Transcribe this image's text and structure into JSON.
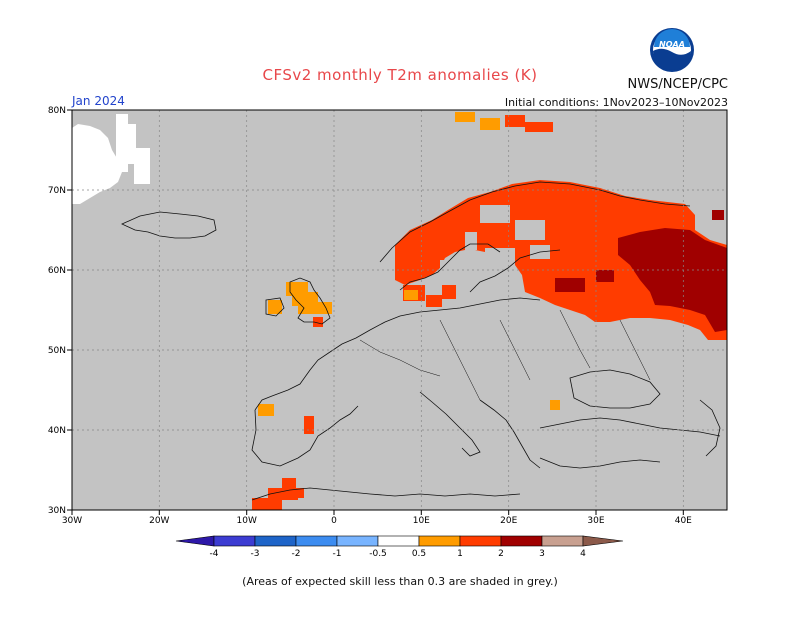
{
  "title": "CFSv2 monthly T2m anomalies (K)",
  "credit": "NWS/NCEP/CPC",
  "logo_text": "NOAA",
  "period": "Jan 2024",
  "initial_conditions": "Initial conditions: 1Nov2023–10Nov2023",
  "footnote": "(Areas of expected skill less than 0.3 are shaded in grey.)",
  "map": {
    "lon_range": [
      -30,
      45
    ],
    "lat_range": [
      30,
      80
    ],
    "x_ticks": [
      "30W",
      "20W",
      "10W",
      "0",
      "10E",
      "20E",
      "30E",
      "40E"
    ],
    "y_ticks": [
      "30N",
      "40N",
      "50N",
      "60N",
      "70N",
      "80N"
    ],
    "grey_color": "#c3c3c3"
  },
  "legend": {
    "labels": [
      "-4",
      "-3",
      "-2",
      "-1",
      "-0.5",
      "0.5",
      "1",
      "2",
      "3",
      "4"
    ],
    "colors": [
      "#2d18a8",
      "#3c3cd2",
      "#1e64c8",
      "#3c8cf0",
      "#78b4ff",
      "#ffffff",
      "#ff9c00",
      "#ff3c00",
      "#a00000",
      "#c8a090",
      "#8c5a4a"
    ]
  }
}
